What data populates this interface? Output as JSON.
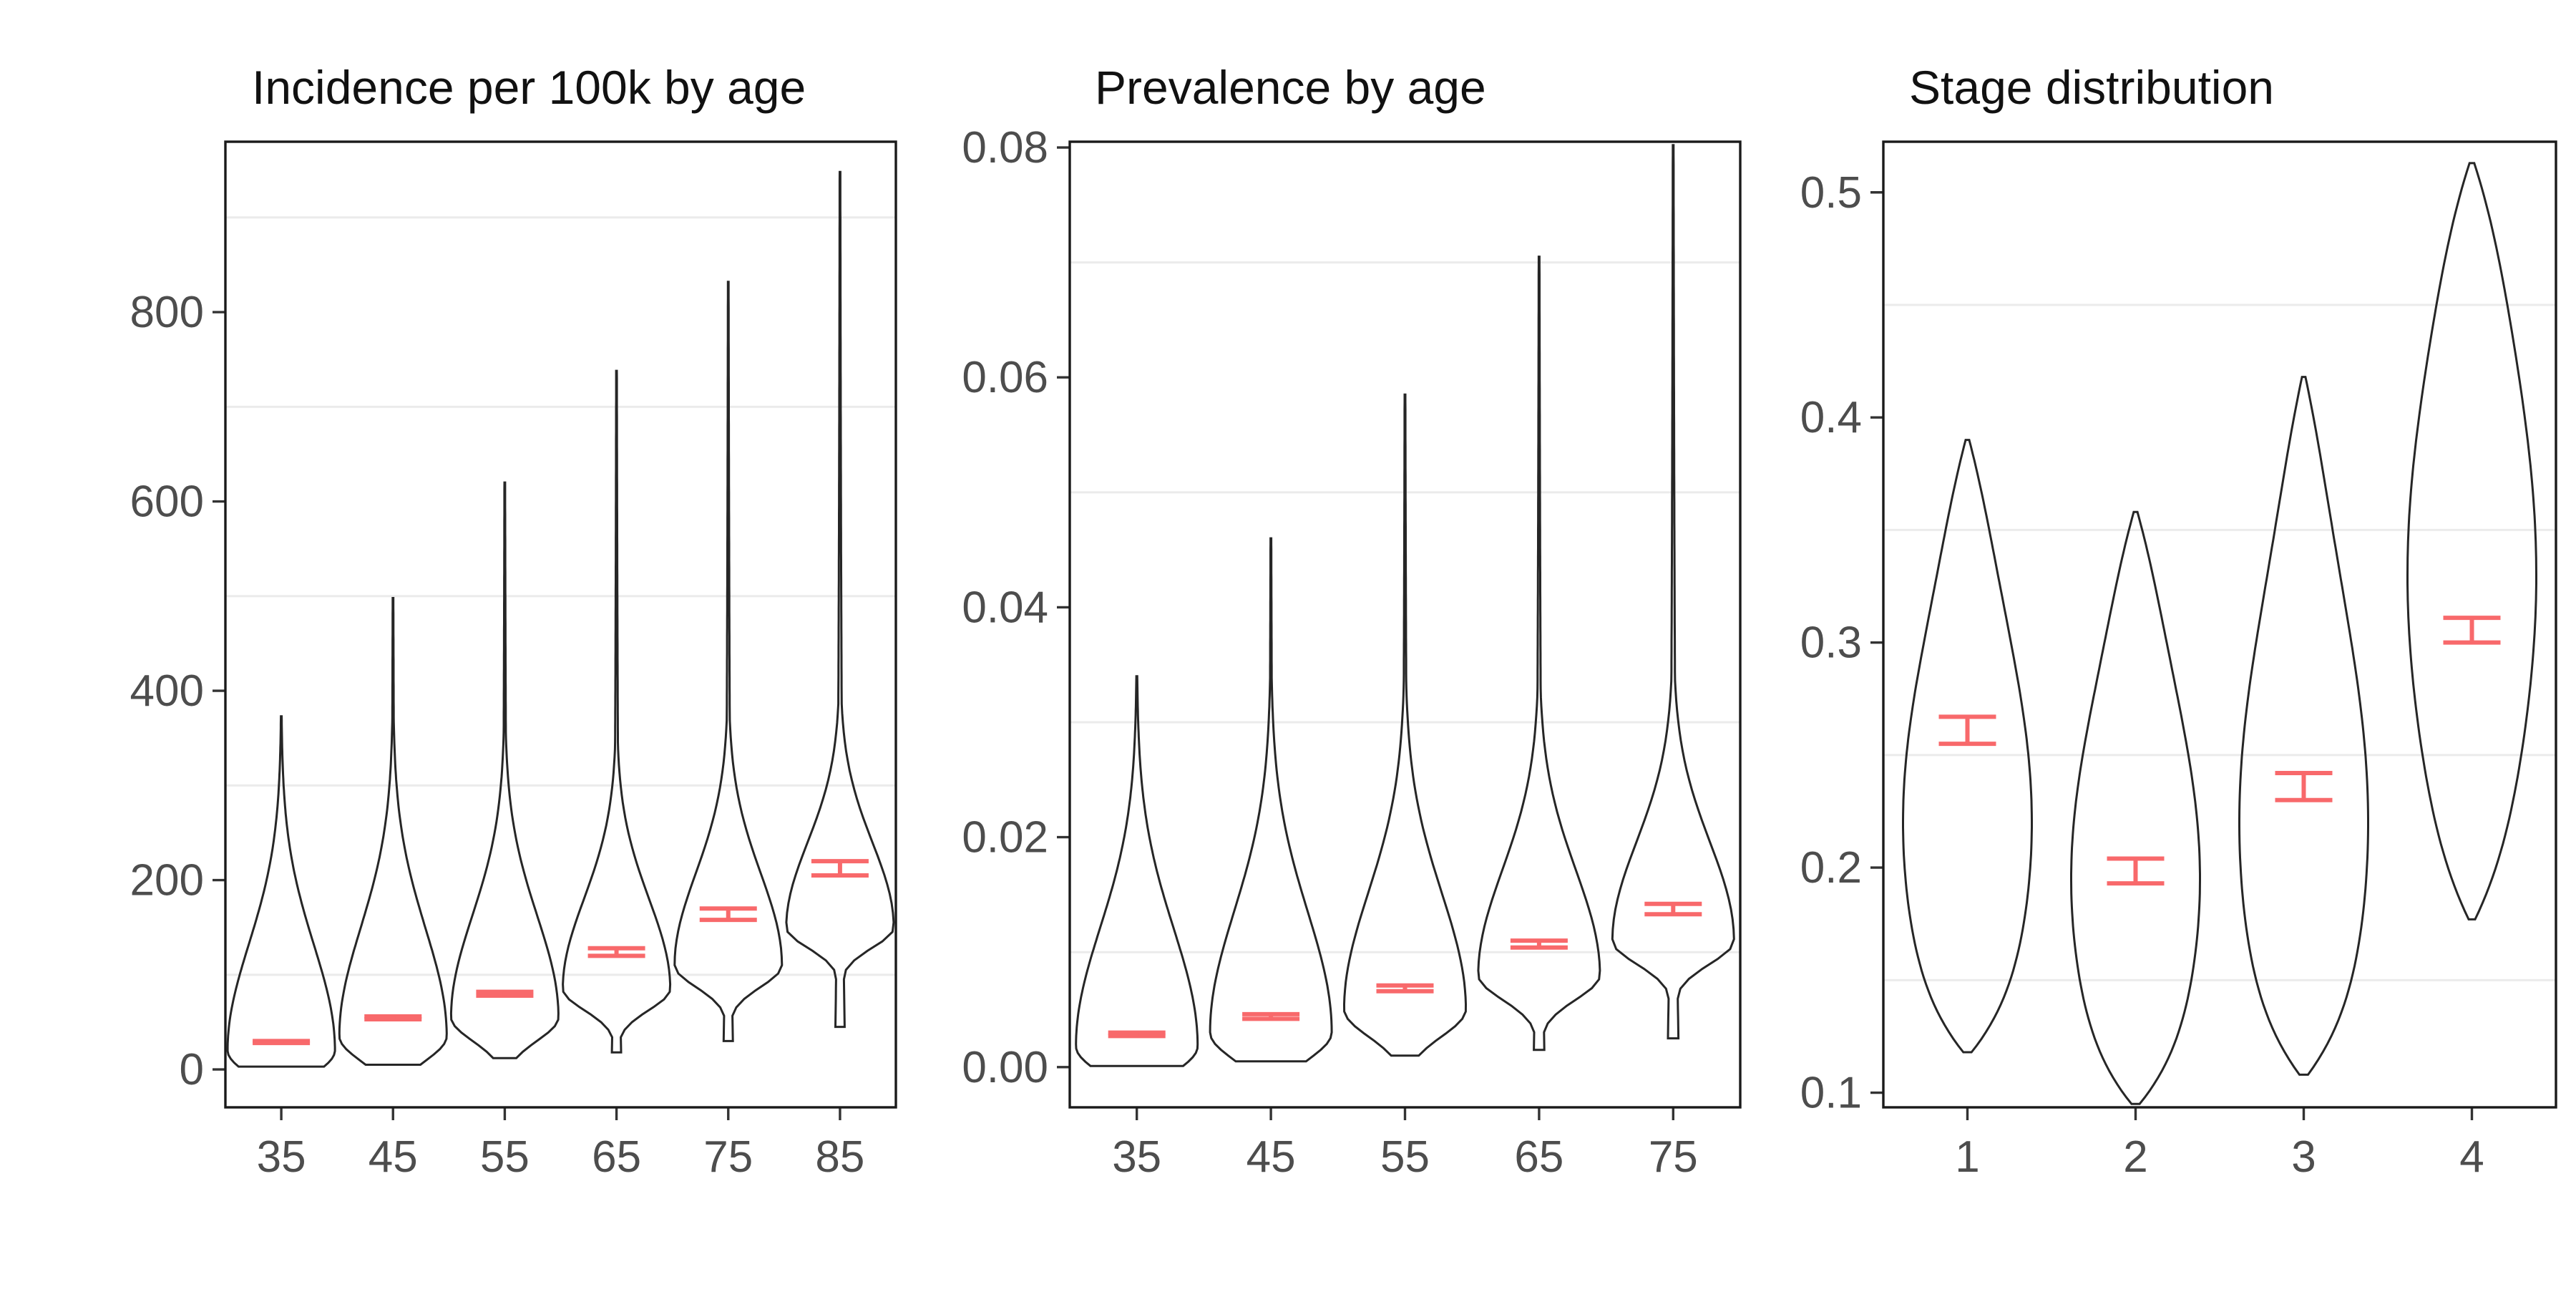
{
  "colors": {
    "violin_stroke": "#262626",
    "interval": "#f8696b",
    "grid": "#ebebeb",
    "frame": "#1a1a1a"
  },
  "chart_data": [
    {
      "type": "violin",
      "title": "Incidence per 100k by age",
      "xlabel": "",
      "ylabel": "",
      "categories": [
        "35",
        "45",
        "55",
        "65",
        "75",
        "85"
      ],
      "yticks": [
        "0",
        "200",
        "400",
        "600",
        "800"
      ],
      "ylim": [
        -40,
        980
      ],
      "grid": true,
      "violins": [
        {
          "min": 3,
          "max": 373,
          "peak": 20,
          "spread": 0.55,
          "skew": "right"
        },
        {
          "min": 5,
          "max": 498,
          "peak": 35,
          "spread": 0.42,
          "skew": "right"
        },
        {
          "min": 12,
          "max": 620,
          "peak": 55,
          "spread": 0.32,
          "skew": "right"
        },
        {
          "min": 18,
          "max": 738,
          "peak": 85,
          "spread": 0.24,
          "skew": "right"
        },
        {
          "min": 30,
          "max": 832,
          "peak": 110,
          "spread": 0.22,
          "skew": "right"
        },
        {
          "min": 45,
          "max": 948,
          "peak": 150,
          "spread": 0.18,
          "skew": "right"
        }
      ],
      "intervals": [
        {
          "low": 28,
          "mid": 29,
          "high": 30
        },
        {
          "low": 53,
          "mid": 54,
          "high": 56
        },
        {
          "low": 78,
          "mid": 80,
          "high": 82
        },
        {
          "low": 120,
          "mid": 124,
          "high": 128
        },
        {
          "low": 158,
          "mid": 164,
          "high": 170
        },
        {
          "low": 205,
          "mid": 212,
          "high": 220
        }
      ]
    },
    {
      "type": "violin",
      "title": "Prevalence by age",
      "xlabel": "",
      "ylabel": "",
      "categories": [
        "35",
        "45",
        "55",
        "65",
        "75"
      ],
      "yticks": [
        "0.00",
        "0.02",
        "0.04",
        "0.06",
        "0.08"
      ],
      "ylim": [
        -0.0035,
        0.0805
      ],
      "grid": true,
      "violins": [
        {
          "min": 0.0001,
          "max": 0.034,
          "peak": 0.0018,
          "spread": 0.55,
          "skew": "right"
        },
        {
          "min": 0.0005,
          "max": 0.046,
          "peak": 0.003,
          "spread": 0.42,
          "skew": "right"
        },
        {
          "min": 0.001,
          "max": 0.0585,
          "peak": 0.005,
          "spread": 0.32,
          "skew": "right"
        },
        {
          "min": 0.0015,
          "max": 0.0705,
          "peak": 0.008,
          "spread": 0.24,
          "skew": "right"
        },
        {
          "min": 0.0025,
          "max": 0.0802,
          "peak": 0.011,
          "spread": 0.2,
          "skew": "right"
        }
      ],
      "intervals": [
        {
          "low": 0.0027,
          "mid": 0.0029,
          "high": 0.003
        },
        {
          "low": 0.0042,
          "mid": 0.0044,
          "high": 0.0046
        },
        {
          "low": 0.0066,
          "mid": 0.0069,
          "high": 0.0071
        },
        {
          "low": 0.0104,
          "mid": 0.0107,
          "high": 0.011
        },
        {
          "low": 0.0133,
          "mid": 0.0138,
          "high": 0.0142
        }
      ]
    },
    {
      "type": "violin",
      "title": "Stage distribution",
      "xlabel": "",
      "ylabel": "",
      "categories": [
        "1",
        "2",
        "3",
        "4"
      ],
      "yticks": [
        "0.1",
        "0.2",
        "0.3",
        "0.4",
        "0.5"
      ],
      "ylim": [
        0.0935,
        0.5225
      ],
      "grid": true,
      "violins": [
        {
          "min": 0.118,
          "max": 0.39,
          "peak": 0.22,
          "spread": 0.85,
          "skew": "sym"
        },
        {
          "min": 0.095,
          "max": 0.358,
          "peak": 0.195,
          "spread": 0.85,
          "skew": "sym"
        },
        {
          "min": 0.108,
          "max": 0.418,
          "peak": 0.22,
          "spread": 0.85,
          "skew": "sym"
        },
        {
          "min": 0.177,
          "max": 0.513,
          "peak": 0.33,
          "spread": 0.85,
          "skew": "sym"
        }
      ],
      "intervals": [
        {
          "low": 0.255,
          "mid": 0.261,
          "high": 0.267
        },
        {
          "low": 0.193,
          "mid": 0.198,
          "high": 0.204
        },
        {
          "low": 0.23,
          "mid": 0.236,
          "high": 0.242
        },
        {
          "low": 0.3,
          "mid": 0.305,
          "high": 0.311
        }
      ]
    }
  ]
}
